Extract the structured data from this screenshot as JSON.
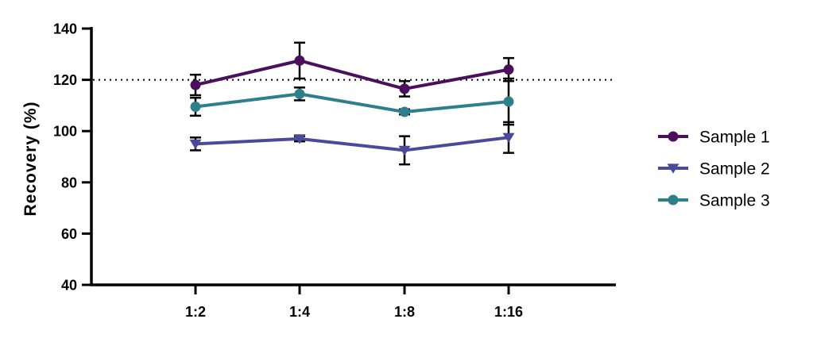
{
  "chart_data": {
    "type": "line",
    "title": "",
    "xlabel": "",
    "ylabel": "Recovery (%)",
    "categories": [
      "1:2",
      "1:4",
      "1:8",
      "1:16"
    ],
    "ylim": [
      40,
      140
    ],
    "yticks": [
      40,
      60,
      80,
      100,
      120,
      140
    ],
    "reference_line": {
      "y": 120,
      "style": "dotted"
    },
    "grid": false,
    "legend_position": "right",
    "series": [
      {
        "name": "Sample 1",
        "marker": "circle",
        "color": "#4b0f5e",
        "values": [
          118,
          127.5,
          116.5,
          124
        ],
        "errors": [
          4,
          7,
          3,
          4.5
        ]
      },
      {
        "name": "Sample 2",
        "marker": "triangle-down",
        "color": "#4a4a9a",
        "values": [
          95,
          97,
          92.5,
          97.5
        ],
        "errors": [
          2.5,
          1,
          5.5,
          6
        ]
      },
      {
        "name": "Sample 3",
        "marker": "circle",
        "color": "#2e7f8c",
        "values": [
          109.5,
          114.5,
          107.5,
          111.5
        ],
        "errors": [
          3.5,
          2.5,
          1,
          9
        ]
      }
    ]
  }
}
